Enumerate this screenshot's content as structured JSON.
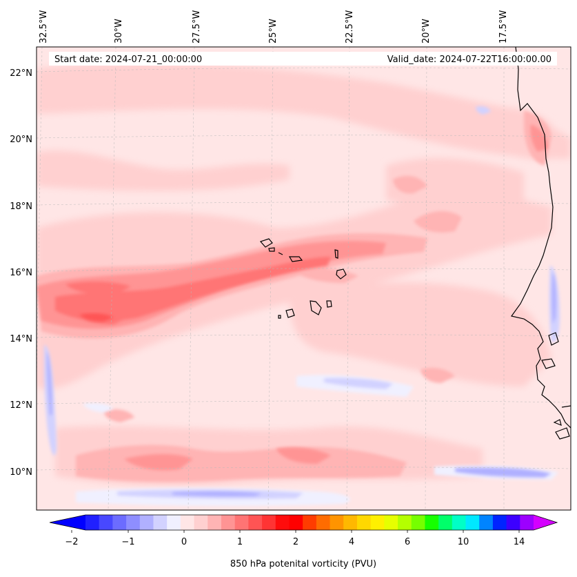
{
  "map": {
    "lon_labels": [
      "32.5°W",
      "30°W",
      "27.5°W",
      "25°W",
      "22.5°W",
      "20°W",
      "17.5°W"
    ],
    "lat_labels": [
      "22°N",
      "20°N",
      "18°N",
      "16°N",
      "14°N",
      "12°N",
      "10°N"
    ],
    "start_date": "Start date: 2024-07-21_00:00:00",
    "valid_date": "Valid_date: 2024-07-22T16:00:00.00"
  },
  "colorbar": {
    "tick_labels": [
      "−2",
      "−1",
      "0",
      "1",
      "2",
      "4",
      "6",
      "10",
      "14"
    ],
    "label": "850 hPa potenital vorticity (PVU)",
    "colors": [
      "#0000ff",
      "#2020ff",
      "#4848ff",
      "#6c6cff",
      "#8e8eff",
      "#b0b0ff",
      "#d2d2ff",
      "#f0f0ff",
      "#ffe6e6",
      "#ffd0d0",
      "#ffb4b4",
      "#ff9494",
      "#ff7474",
      "#ff5454",
      "#ff3434",
      "#ff0c0c",
      "#ff0000",
      "#ff3c00",
      "#ff6c00",
      "#ff9400",
      "#ffb800",
      "#ffd800",
      "#fff000",
      "#e6ff00",
      "#b4ff00",
      "#76ff00",
      "#16ff00",
      "#00ff6a",
      "#00ffc6",
      "#00e8ff",
      "#0084ff",
      "#0024ff",
      "#3c00ff",
      "#9c00ff",
      "#d400ff"
    ]
  }
}
